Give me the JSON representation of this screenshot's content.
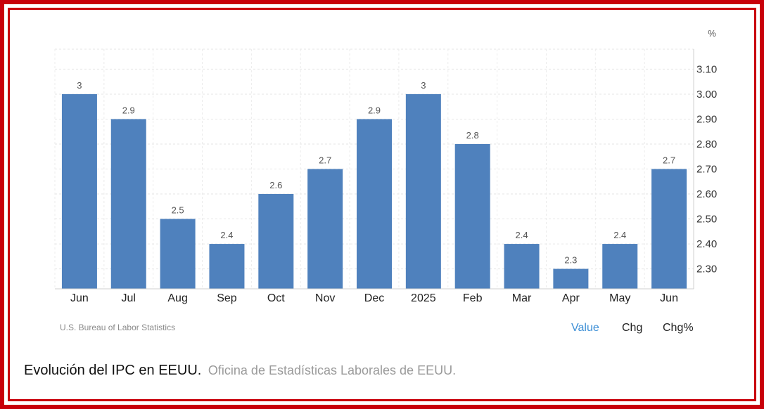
{
  "caption": {
    "title": "Evolución del IPC en EEUU.",
    "source": "Oficina de Estadísticas Laborales de EEUU."
  },
  "source_label": "U.S. Bureau of Labor Statistics",
  "tabs": [
    {
      "label": "Value",
      "active": true
    },
    {
      "label": "Chg",
      "active": false
    },
    {
      "label": "Chg%",
      "active": false
    }
  ],
  "colors": {
    "bar": "#4f81bd",
    "frame": "#c8000a",
    "active_tab": "#3d8fd6"
  },
  "chart_data": {
    "type": "bar",
    "unit": "%",
    "categories": [
      "Jun",
      "Jul",
      "Aug",
      "Sep",
      "Oct",
      "Nov",
      "Dec",
      "2025",
      "Feb",
      "Mar",
      "Apr",
      "May",
      "Jun"
    ],
    "values": [
      3,
      2.9,
      2.5,
      2.4,
      2.6,
      2.7,
      2.9,
      3,
      2.8,
      2.4,
      2.3,
      2.4,
      2.7
    ],
    "data_labels": [
      "3",
      "2.9",
      "2.5",
      "2.4",
      "2.6",
      "2.7",
      "2.9",
      "3",
      "2.8",
      "2.4",
      "2.3",
      "2.4",
      "2.7"
    ],
    "ylim": [
      2.22,
      3.18
    ],
    "yticks": [
      2.3,
      2.4,
      2.5,
      2.6,
      2.7,
      2.8,
      2.9,
      3.0,
      3.1
    ],
    "ytick_labels": [
      "2.30",
      "2.40",
      "2.50",
      "2.60",
      "2.70",
      "2.80",
      "2.90",
      "3.00",
      "3.10"
    ],
    "y_axis_position": "right",
    "grid": true
  }
}
